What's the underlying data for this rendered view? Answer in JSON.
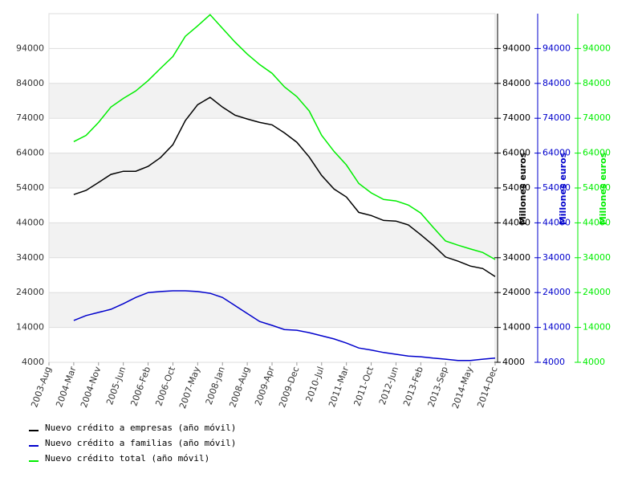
{
  "chart_data": {
    "type": "line",
    "categories": [
      "2003-Aug",
      null,
      "2004-Mar",
      null,
      "2004-Nov",
      null,
      "2005-Jun",
      null,
      "2006-Feb",
      null,
      "2006-Oct",
      null,
      "2007-May",
      null,
      "2008-Jan",
      null,
      "2008-Aug",
      null,
      "2009-Apr",
      null,
      "2009-Dec",
      null,
      "2010-Jul",
      null,
      "2011-Mar",
      null,
      "2011-Oct",
      null,
      "2012-Jun",
      null,
      "2013-Feb",
      null,
      "2013-Sep",
      null,
      "2014-May",
      null,
      "2014-Dec"
    ],
    "series": [
      {
        "name": "Nuevo crédito a empresas (año móvil)",
        "color": "#000000",
        "values": [
          null,
          null,
          52100,
          53300,
          55600,
          57900,
          58800,
          58800,
          60200,
          62700,
          66400,
          73300,
          77900,
          80000,
          77200,
          74900,
          73800,
          72800,
          72100,
          69800,
          67100,
          62900,
          57600,
          53700,
          51400,
          47000,
          46100,
          44700,
          44500,
          43400,
          40600,
          37600,
          34200,
          33000,
          31600,
          30900,
          28600
        ]
      },
      {
        "name": "Nuevo crédito a familias (año móvil)",
        "color": "#0000cc",
        "values": [
          null,
          null,
          16000,
          17400,
          18300,
          19200,
          20800,
          22600,
          24000,
          24300,
          24500,
          24500,
          24300,
          23800,
          22600,
          20300,
          18000,
          15700,
          14600,
          13400,
          13200,
          12500,
          11600,
          10700,
          9500,
          8100,
          7500,
          6800,
          6300,
          5800,
          5600,
          5200,
          4900,
          4500,
          4500,
          4900,
          5200
        ]
      },
      {
        "name": "Nuevo crédito total (año móvil)",
        "color": "#00ee00",
        "values": [
          null,
          null,
          67300,
          69100,
          72800,
          77200,
          79700,
          81800,
          84800,
          88300,
          91700,
          97500,
          100500,
          103700,
          99800,
          95900,
          92400,
          89400,
          86900,
          83000,
          80200,
          76100,
          69100,
          64500,
          60600,
          55300,
          52600,
          50700,
          50300,
          49100,
          46800,
          42700,
          38800,
          37600,
          36500,
          35500,
          33500
        ]
      }
    ],
    "ylim": [
      4000,
      104000
    ],
    "yticks": [
      4000,
      14000,
      24000,
      34000,
      44000,
      54000,
      64000,
      74000,
      84000,
      94000
    ],
    "axes": [
      {
        "label": "Millones euros",
        "color": "#000000"
      },
      {
        "label": "Millones euros",
        "color": "#0000cc"
      },
      {
        "label": "Millones euros",
        "color": "#00ee00"
      }
    ],
    "grid": true
  }
}
